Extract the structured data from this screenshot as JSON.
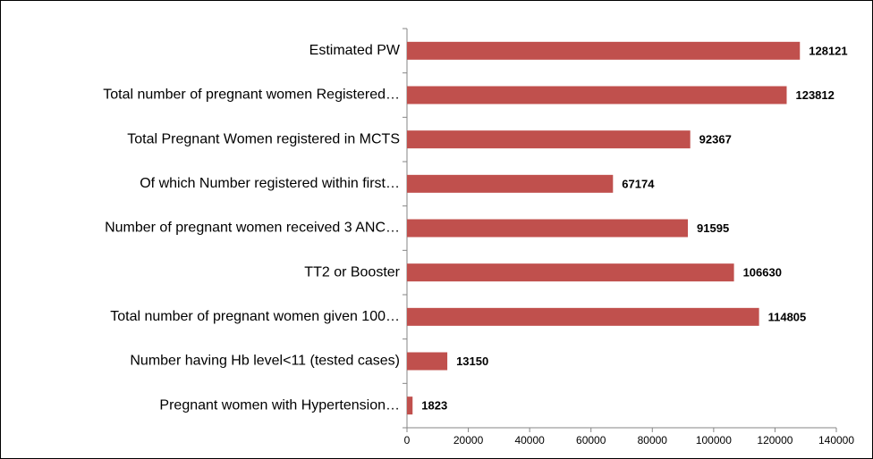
{
  "chart_data": {
    "type": "bar",
    "orientation": "horizontal",
    "categories": [
      "Estimated PW",
      "Total number of pregnant women Registered…",
      "Total Pregnant Women registered in MCTS",
      "Of which Number registered within first…",
      "Number of pregnant women received 3 ANC…",
      "TT2 or Booster",
      "Total number of pregnant women given 100…",
      "Number having Hb level<11 (tested cases)",
      "Pregnant women with Hypertension…"
    ],
    "values": [
      128121,
      123812,
      92367,
      67174,
      91595,
      106630,
      114805,
      13150,
      1823
    ],
    "color": "#c0504d",
    "xlim": [
      0,
      140000
    ],
    "xticks": [
      0,
      20000,
      40000,
      60000,
      80000,
      100000,
      120000,
      140000
    ],
    "grid": false
  }
}
